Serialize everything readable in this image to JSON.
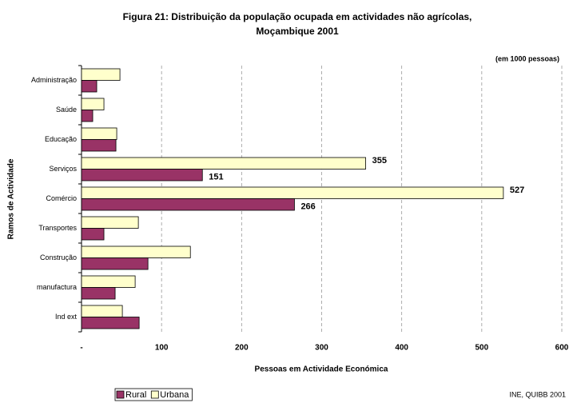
{
  "chart_data": {
    "type": "bar",
    "orientation": "horizontal",
    "title": "Figura 21: Distribuição da população ocupada em actividades não agrícolas,",
    "subtitle": "Moçambique 2001",
    "unit_note": "(em 1000 pessoas)",
    "source": "INE, QUIBB 2001",
    "xlabel": "Pessoas em Actividade Económica",
    "ylabel": "Ramos de Actividade",
    "categories": [
      "Administração",
      "Saúde",
      "Educação",
      "Serviços",
      "Comércio",
      "Transportes",
      "Construção",
      "manufactura",
      "Ind ext"
    ],
    "series": [
      {
        "name": "Rural",
        "color": "#993366",
        "values": [
          19,
          14,
          43,
          151,
          266,
          28,
          83,
          42,
          72
        ],
        "value_labels": [
          null,
          null,
          null,
          "151",
          "266",
          null,
          null,
          null,
          null
        ]
      },
      {
        "name": "Urbana",
        "color": "#ffffcc",
        "values": [
          48,
          28,
          44,
          355,
          527,
          71,
          136,
          67,
          51
        ],
        "value_labels": [
          null,
          null,
          null,
          "355",
          "527",
          null,
          null,
          null,
          null
        ]
      }
    ],
    "xlim": [
      0,
      600
    ],
    "xticks": [
      {
        "value": 0,
        "label": "-"
      },
      100,
      200,
      300,
      400,
      500,
      600
    ],
    "grid": true,
    "legend": "bottom-left"
  }
}
